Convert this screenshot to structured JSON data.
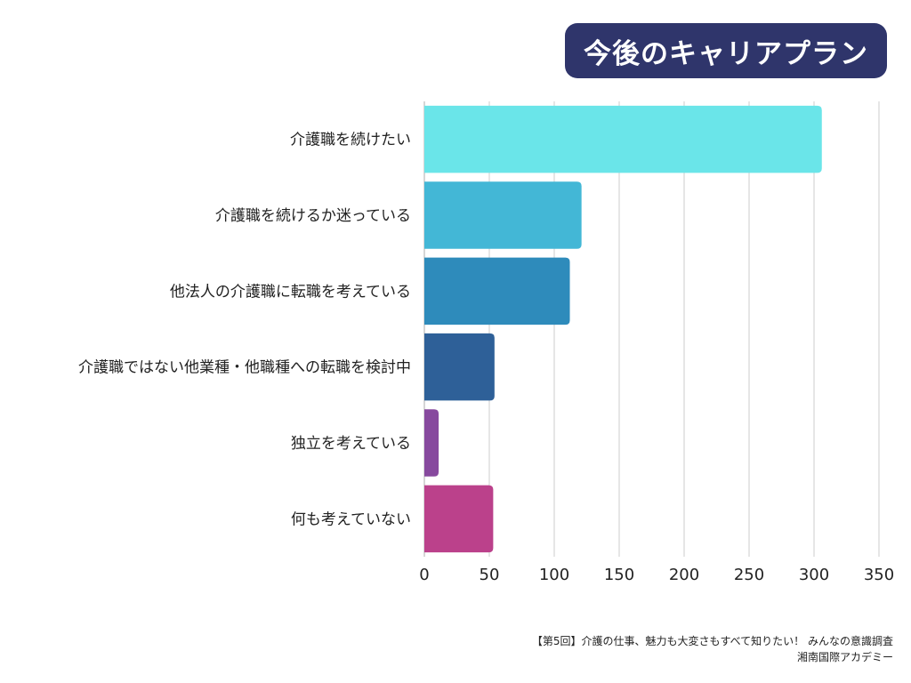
{
  "header": {
    "title": "今後のキャリアプラン"
  },
  "chart_data": {
    "type": "bar",
    "orientation": "horizontal",
    "title": "今後のキャリアプラン",
    "xlabel": "",
    "ylabel": "",
    "categories": [
      "介護職を続けたい",
      "介護職を続けるか迷っている",
      "他法人の介護職に転職を考えている",
      "介護職ではない他業種・他職種への転職を検討中",
      "独立を考えている",
      "何も考えていない"
    ],
    "values": [
      306,
      121,
      112,
      54,
      11,
      53
    ],
    "colors": [
      "#6ae5e9",
      "#43b7d6",
      "#2e8bbb",
      "#2e6098",
      "#87499e",
      "#bb418b"
    ],
    "xlim": [
      0,
      350
    ],
    "xticks": [
      0,
      50,
      100,
      150,
      200,
      250,
      300,
      350
    ],
    "grid": true,
    "legend": "none"
  },
  "footer": {
    "source": "【第5回】介護の仕事、魅力も大変さもすべて知りたい！ みんなの意識調査",
    "organization": "湘南国際アカデミー"
  }
}
